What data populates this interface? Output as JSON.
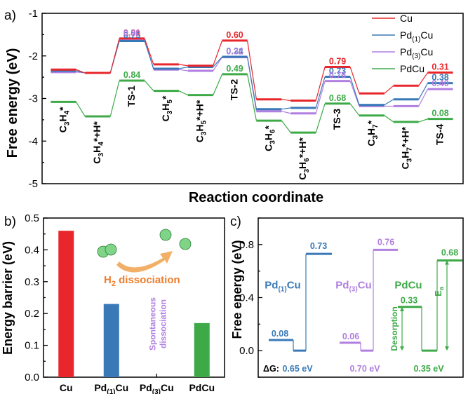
{
  "colors": {
    "Cu": "#e8262b",
    "Pd1Cu": "#3a79b8",
    "Pd3Cu": "#b07fe0",
    "PdCu": "#3daa47",
    "arrow": "#f0a14e",
    "arrow_text": "#ee7d2c",
    "sphere": "#7fd487",
    "sphere_edge": "#2f7d3a",
    "axis": "#000000",
    "cb_line": "#000000"
  },
  "chart_data": [
    {
      "panel": "a)",
      "type": "line",
      "title": "",
      "xlabel": "Reaction coordinate",
      "ylabel": "Free energy (eV)",
      "ylim": [
        -5,
        -1
      ],
      "yticks": [
        "-5",
        "-4",
        "-3",
        "-2",
        "-1"
      ],
      "legend_position": "top-right",
      "legend": [
        {
          "key": "Cu",
          "label": "Cu",
          "sub": ""
        },
        {
          "key": "Pd1Cu",
          "label": "Pd",
          "sub": "(1)",
          "tail": "Cu"
        },
        {
          "key": "Pd3Cu",
          "label": "Pd",
          "sub": "(3)",
          "tail": "Cu"
        },
        {
          "key": "PdCu",
          "label": "PdCu",
          "sub": ""
        }
      ],
      "states": [
        {
          "main": "C",
          "sub1": "3",
          "mid": "H",
          "sub2": "4",
          "tail": "*"
        },
        {
          "main": "C",
          "sub1": "3",
          "mid": "H",
          "sub2": "4",
          "tail": "*+H*"
        },
        {
          "main": "TS-1",
          "sub1": "",
          "mid": "",
          "sub2": "",
          "tail": ""
        },
        {
          "main": "C",
          "sub1": "3",
          "mid": "H",
          "sub2": "5",
          "tail": "*"
        },
        {
          "main": "C",
          "sub1": "3",
          "mid": "H",
          "sub2": "5",
          "tail": "*+H*"
        },
        {
          "main": "TS-2",
          "sub1": "",
          "mid": "",
          "sub2": "",
          "tail": ""
        },
        {
          "main": "C",
          "sub1": "3",
          "mid": "H",
          "sub2": "6",
          "tail": "*"
        },
        {
          "main": "C",
          "sub1": "3",
          "mid": "H",
          "sub2": "6",
          "tail": "*+H*"
        },
        {
          "main": "TS-3",
          "sub1": "",
          "mid": "",
          "sub2": "",
          "tail": ""
        },
        {
          "main": "C",
          "sub1": "3",
          "mid": "H",
          "sub2": "7",
          "tail": "*"
        },
        {
          "main": "C",
          "sub1": "3",
          "mid": "H",
          "sub2": "7",
          "tail": "*+H*"
        },
        {
          "main": "TS-4",
          "sub1": "",
          "mid": "",
          "sub2": "",
          "tail": ""
        }
      ],
      "series": [
        {
          "key": "Cu",
          "name": "Cu",
          "values": [
            -2.32,
            -2.4,
            -1.59,
            -2.2,
            -2.23,
            -1.64,
            -3.02,
            -3.05,
            -2.26,
            -2.88,
            -2.7,
            -2.39
          ]
        },
        {
          "key": "Pd1Cu",
          "name": "Pd(1)Cu",
          "values": [
            -2.35,
            -2.4,
            -1.65,
            -2.3,
            -2.26,
            -2.02,
            -3.25,
            -3.22,
            -2.49,
            -3.15,
            -3.02,
            -2.64
          ]
        },
        {
          "key": "Pd3Cu",
          "name": "Pd(3)Cu",
          "values": [
            -2.38,
            -2.4,
            -1.6,
            -2.32,
            -2.35,
            -2.03,
            -3.3,
            -3.35,
            -2.59,
            -3.18,
            -3.18,
            -2.78
          ]
        },
        {
          "key": "PdCu",
          "name": "PdCu",
          "values": [
            -3.08,
            -3.42,
            -2.58,
            -2.82,
            -2.92,
            -2.43,
            -3.52,
            -3.8,
            -3.12,
            -3.4,
            -3.55,
            -3.48
          ]
        }
      ],
      "ts_labels": [
        {
          "ts": 2,
          "values": [
            "0.81",
            "0.75",
            "0.80",
            "0.84"
          ]
        },
        {
          "ts": 5,
          "values": [
            "0.60",
            "0.24",
            "0.32",
            "0.49"
          ]
        },
        {
          "ts": 8,
          "values": [
            "0.79",
            "0.73",
            "0.76",
            "0.68"
          ]
        },
        {
          "ts": 11,
          "values": [
            "0.31",
            "0.38",
            "0.40",
            "0.08"
          ]
        }
      ]
    },
    {
      "panel": "b)",
      "type": "bar",
      "title": "",
      "xlabel": "",
      "ylabel": "Energy barrier (eV)",
      "ylim": [
        0,
        0.5
      ],
      "yticks": [
        "0.0",
        "0.1",
        "0.2",
        "0.3",
        "0.4",
        "0.5"
      ],
      "categories": [
        {
          "key": "Cu",
          "label": "Cu",
          "sub": "",
          "tail": ""
        },
        {
          "key": "Pd1Cu",
          "label": "Pd",
          "sub": "(1)",
          "tail": "Cu"
        },
        {
          "key": "Pd3Cu",
          "label": "Pd",
          "sub": "(3)",
          "tail": "Cu"
        },
        {
          "key": "PdCu",
          "label": "PdCu",
          "sub": "",
          "tail": ""
        }
      ],
      "values": [
        0.46,
        0.23,
        null,
        0.17
      ],
      "annotation_h2": {
        "pre": "H",
        "sub": "2",
        "post": " dissociation"
      },
      "annotation_spont": [
        "Spontaneous",
        "dissociation"
      ]
    },
    {
      "panel": "c)",
      "type": "line",
      "title": "",
      "xlabel": "",
      "ylabel": "Free energy (eV)",
      "ylim": [
        -0.2,
        1.0
      ],
      "yticks": [
        "0.0",
        "0.4",
        "0.8"
      ],
      "series": [
        {
          "key": "Pd1Cu",
          "name_main": "Pd",
          "name_sub": "(1)",
          "name_tail": "Cu",
          "levels": [
            0.08,
            0.0,
            0.73
          ],
          "labels": [
            "0.08",
            "0.73"
          ],
          "dg": "0.65 eV"
        },
        {
          "key": "Pd3Cu",
          "name_main": "Pd",
          "name_sub": "(3)",
          "name_tail": "Cu",
          "levels": [
            0.06,
            0.0,
            0.76
          ],
          "labels": [
            "0.06",
            "0.76"
          ],
          "dg": "0.70 eV"
        },
        {
          "key": "PdCu",
          "name_main": "PdCu",
          "name_sub": "",
          "name_tail": "",
          "levels": [
            0.33,
            0.0,
            0.68
          ],
          "labels": [
            "0.33",
            "0.68"
          ],
          "dg": "0.35 eV"
        }
      ],
      "dg_label": "ΔG:",
      "desorption_label": "Desorption",
      "ea_main": "E",
      "ea_sub": "a"
    }
  ]
}
